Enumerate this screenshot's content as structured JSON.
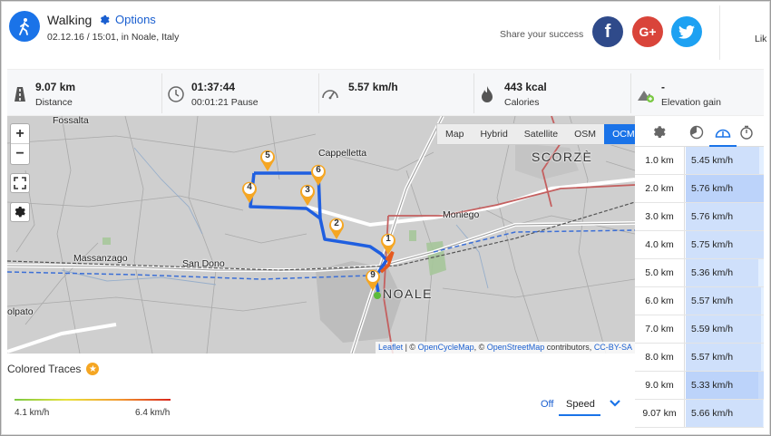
{
  "activity": {
    "title": "Walking",
    "options_label": "Options",
    "subtitle": "02.12.16 / 15:01, in Noale, Italy"
  },
  "share": {
    "label": "Share your success",
    "facebook": "f",
    "googleplus": "G+",
    "like_partial": "Lik"
  },
  "stats": [
    {
      "value": "9.07 km",
      "label": "Distance",
      "icon": "road-icon"
    },
    {
      "value": "01:37:44",
      "label": "00:01:21 Pause",
      "icon": "clock-icon"
    },
    {
      "value": "5.57 km/h",
      "label": "",
      "icon": "speedometer-icon"
    },
    {
      "value": "443 kcal",
      "label": "Calories",
      "icon": "flame-icon"
    },
    {
      "value": "-",
      "label": "Elevation gain",
      "icon": "elevation-icon"
    }
  ],
  "map": {
    "zoom_in": "+",
    "zoom_out": "−",
    "layers": [
      "Map",
      "Hybrid",
      "Satellite",
      "OSM",
      "OCM"
    ],
    "active_layer": "OCM",
    "places": {
      "fossalta": "Fossalta",
      "cappelletta": "Cappelletta",
      "scorze": "SCORZÈ",
      "moniego": "Moniego",
      "massanzago": "Massanzago",
      "san_dono": "San Dono",
      "noale": "NOALE",
      "olpato": "olpato"
    },
    "markers": [
      "1",
      "2",
      "3",
      "4",
      "5",
      "6",
      "9"
    ],
    "attribution": {
      "leaflet": "Leaflet",
      "sep1": " | © ",
      "ocm": "OpenCycleMap",
      "sep2": ", © ",
      "osm": "OpenStreetMap",
      "contrib": " contributors, ",
      "license": "CC-BY-SA"
    }
  },
  "splits": {
    "active_tab": "speed",
    "rows": [
      {
        "km": "1.0 km",
        "speed": "5.45 km/h",
        "highlight": false
      },
      {
        "km": "2.0 km",
        "speed": "5.76 km/h",
        "highlight": true
      },
      {
        "km": "3.0 km",
        "speed": "5.76 km/h",
        "highlight": false
      },
      {
        "km": "4.0 km",
        "speed": "5.75 km/h",
        "highlight": false
      },
      {
        "km": "5.0 km",
        "speed": "5.36 km/h",
        "highlight": false
      },
      {
        "km": "6.0 km",
        "speed": "5.57 km/h",
        "highlight": false
      },
      {
        "km": "7.0 km",
        "speed": "5.59 km/h",
        "highlight": false
      },
      {
        "km": "8.0 km",
        "speed": "5.57 km/h",
        "highlight": false
      },
      {
        "km": "9.0 km",
        "speed": "5.33 km/h",
        "highlight": true
      },
      {
        "km": "9.07 km",
        "speed": "5.66 km/h",
        "highlight": false
      }
    ]
  },
  "traces": {
    "title": "Colored Traces",
    "min_label": "4.1 km/h",
    "max_label": "6.4 km/h",
    "off_label": "Off",
    "metric": "Speed"
  },
  "colors": {
    "accent": "#1a73e8",
    "route": "#1f5fe0",
    "marker": "#f5a623",
    "facebook": "#2f4a8a",
    "googleplus": "#d9443a",
    "twitter": "#1da1f2"
  }
}
